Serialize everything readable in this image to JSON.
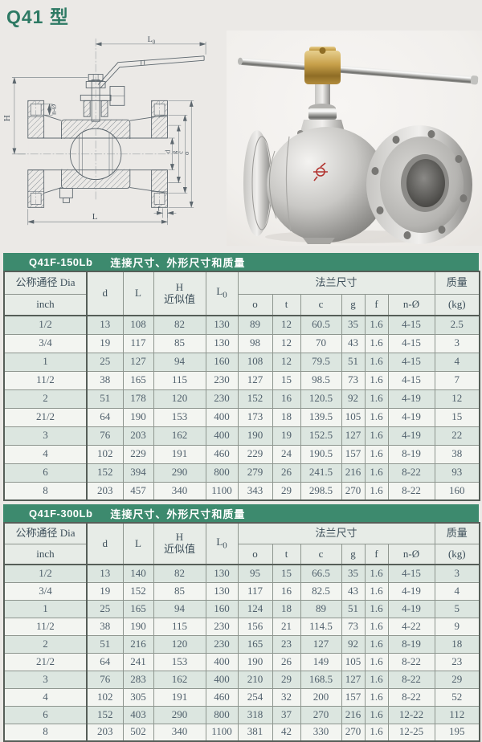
{
  "page": {
    "title": "Q41 型"
  },
  "colors": {
    "band_green": "#3d8a6e",
    "title_green": "#2e7a64",
    "row_tint": "#dce6e0",
    "table_text": "#50606c",
    "brand_mark_red": "#b23430"
  },
  "drawing": {
    "labels": {
      "l0_base": "L",
      "l0_sub": "0",
      "h": "H",
      "n_o": "n-Ø",
      "d": "d",
      "g": "g",
      "c": "c",
      "o": "o",
      "f": "f",
      "l": "L"
    }
  },
  "table_header": {
    "dia": "公称通径 Dia",
    "inch": "inch",
    "d": "d",
    "l": "L",
    "h": "H",
    "h2": "近似值",
    "l0_base": "L",
    "l0_sub": "0",
    "flange": "法兰尺寸",
    "o": "o",
    "t": "t",
    "c": "c",
    "g": "g",
    "f": "f",
    "n_o": "n-Ø",
    "weight": "质量",
    "weight_unit": "(kg)"
  },
  "tables": [
    {
      "model": "Q41F-150Lb",
      "band_title": "连接尺寸、外形尺寸和质量",
      "rows": [
        [
          "1/2",
          13,
          108,
          82,
          130,
          89,
          12,
          60.5,
          35,
          1.6,
          "4-15",
          2.5
        ],
        [
          "3/4",
          19,
          117,
          85,
          130,
          98,
          12,
          70,
          43,
          1.6,
          "4-15",
          3
        ],
        [
          "1",
          25,
          127,
          94,
          160,
          108,
          12,
          79.5,
          51,
          1.6,
          "4-15",
          4
        ],
        [
          "11/2",
          38,
          165,
          115,
          230,
          127,
          15,
          98.5,
          73,
          1.6,
          "4-15",
          7
        ],
        [
          "2",
          51,
          178,
          120,
          230,
          152,
          16,
          120.5,
          92,
          1.6,
          "4-19",
          12
        ],
        [
          "21/2",
          64,
          190,
          153,
          400,
          173,
          18,
          139.5,
          105,
          1.6,
          "4-19",
          15
        ],
        [
          "3",
          76,
          203,
          162,
          400,
          190,
          19,
          152.5,
          127,
          1.6,
          "4-19",
          22
        ],
        [
          "4",
          102,
          229,
          191,
          460,
          229,
          24,
          190.5,
          157,
          1.6,
          "8-19",
          38
        ],
        [
          "6",
          152,
          394,
          290,
          800,
          279,
          26,
          241.5,
          216,
          1.6,
          "8-22",
          93
        ],
        [
          "8",
          203,
          457,
          340,
          1100,
          343,
          29,
          298.5,
          270,
          1.6,
          "8-22",
          160
        ]
      ]
    },
    {
      "model": "Q41F-300Lb",
      "band_title": "连接尺寸、外形尺寸和质量",
      "rows": [
        [
          "1/2",
          13,
          140,
          82,
          130,
          95,
          15,
          66.5,
          35,
          1.6,
          "4-15",
          3
        ],
        [
          "3/4",
          19,
          152,
          85,
          130,
          117,
          16,
          82.5,
          43,
          1.6,
          "4-19",
          4
        ],
        [
          "1",
          25,
          165,
          94,
          160,
          124,
          18,
          89,
          51,
          1.6,
          "4-19",
          5
        ],
        [
          "11/2",
          38,
          190,
          115,
          230,
          156,
          21,
          114.5,
          73,
          1.6,
          "4-22",
          9
        ],
        [
          "2",
          51,
          216,
          120,
          230,
          165,
          23,
          127,
          92,
          1.6,
          "8-19",
          18
        ],
        [
          "21/2",
          64,
          241,
          153,
          400,
          190,
          26,
          149,
          105,
          1.6,
          "8-22",
          23
        ],
        [
          "3",
          76,
          283,
          162,
          400,
          210,
          29,
          168.5,
          127,
          1.6,
          "8-22",
          29
        ],
        [
          "4",
          102,
          305,
          191,
          460,
          254,
          32,
          200,
          157,
          1.6,
          "8-22",
          52
        ],
        [
          "6",
          152,
          403,
          290,
          800,
          318,
          37,
          270,
          216,
          1.6,
          "12-22",
          112
        ],
        [
          "8",
          203,
          502,
          340,
          1100,
          381,
          42,
          330,
          270,
          1.6,
          "12-25",
          195
        ]
      ]
    }
  ]
}
